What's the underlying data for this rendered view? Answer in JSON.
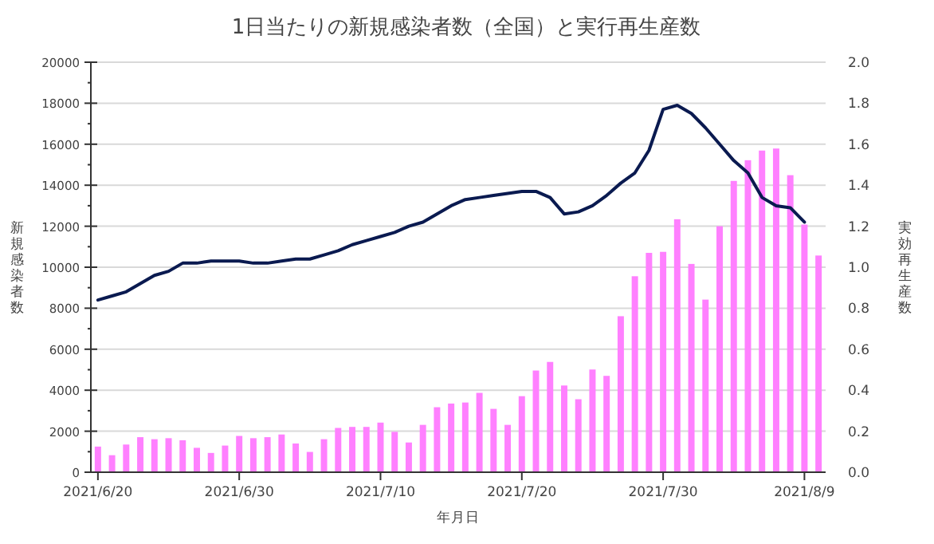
{
  "chart_data": {
    "type": "bar",
    "title": "1日当たりの新規感染者数（全国）と実行再生産数",
    "xlabel": "年月日",
    "ylabel": "新規感染者数",
    "y2label": "実効再生産数",
    "x": [
      "2021-06-20",
      "2021-06-21",
      "2021-06-22",
      "2021-06-23",
      "2021-06-24",
      "2021-06-25",
      "2021-06-26",
      "2021-06-27",
      "2021-06-28",
      "2021-06-29",
      "2021-06-30",
      "2021-07-01",
      "2021-07-02",
      "2021-07-03",
      "2021-07-04",
      "2021-07-05",
      "2021-07-06",
      "2021-07-07",
      "2021-07-08",
      "2021-07-09",
      "2021-07-10",
      "2021-07-11",
      "2021-07-12",
      "2021-07-13",
      "2021-07-14",
      "2021-07-15",
      "2021-07-16",
      "2021-07-17",
      "2021-07-18",
      "2021-07-19",
      "2021-07-20",
      "2021-07-21",
      "2021-07-22",
      "2021-07-23",
      "2021-07-24",
      "2021-07-25",
      "2021-07-26",
      "2021-07-27",
      "2021-07-28",
      "2021-07-29",
      "2021-07-30",
      "2021-07-31",
      "2021-08-01",
      "2021-08-02",
      "2021-08-03",
      "2021-08-04",
      "2021-08-05",
      "2021-08-06",
      "2021-08-07",
      "2021-08-08",
      "2021-08-09",
      "2021-08-10"
    ],
    "series": [
      {
        "color": "#ff80ff",
        "values": [
          1250,
          830,
          1350,
          1710,
          1610,
          1660,
          1560,
          1190,
          940,
          1300,
          1770,
          1660,
          1710,
          1840,
          1400,
          990,
          1610,
          2160,
          2210,
          2210,
          2420,
          1970,
          1450,
          2310,
          3170,
          3350,
          3400,
          3870,
          3090,
          2310,
          3710,
          4960,
          5380,
          4230,
          3560,
          5010,
          4700,
          7610,
          9560,
          10700,
          10750,
          12340,
          10160,
          8420,
          12000,
          14210,
          15220,
          15690,
          15790,
          14490,
          12080,
          10570
        ]
      },
      {
        "type": "line",
        "axis": "y2",
        "color": "#0a1a50",
        "values": [
          0.84,
          0.86,
          0.88,
          0.92,
          0.96,
          0.98,
          1.02,
          1.02,
          1.03,
          1.03,
          1.03,
          1.02,
          1.02,
          1.03,
          1.04,
          1.04,
          1.06,
          1.08,
          1.11,
          1.13,
          1.15,
          1.17,
          1.2,
          1.22,
          1.26,
          1.3,
          1.33,
          1.34,
          1.35,
          1.36,
          1.37,
          1.37,
          1.34,
          1.26,
          1.27,
          1.3,
          1.35,
          1.41,
          1.46,
          1.57,
          1.77,
          1.79,
          1.75,
          1.68,
          1.6,
          1.52,
          1.46,
          1.34,
          1.3,
          1.29,
          1.22,
          null
        ]
      }
    ],
    "xlim": [
      "2021-06-19T12:00",
      "2021-08-10T12:00"
    ],
    "xticks": [
      {
        "value": "2021-06-20",
        "label": "2021/6/20"
      },
      {
        "value": "2021-06-30",
        "label": "2021/6/30"
      },
      {
        "value": "2021-07-10",
        "label": "2021/7/10"
      },
      {
        "value": "2021-07-20",
        "label": "2021/7/20"
      },
      {
        "value": "2021-07-30",
        "label": "2021/7/30"
      },
      {
        "value": "2021-08-09",
        "label": "2021/8/9"
      }
    ],
    "ylim": [
      0,
      20000
    ],
    "yticks": [
      0,
      2000,
      4000,
      6000,
      8000,
      10000,
      12000,
      14000,
      16000,
      18000,
      20000
    ],
    "y2lim": [
      0,
      2
    ],
    "y2ticks": [
      {
        "value": 0,
        "label": "0.0"
      },
      {
        "value": 0.2,
        "label": "0.2"
      },
      {
        "value": 0.4,
        "label": "0.4"
      },
      {
        "value": 0.6,
        "label": "0.6"
      },
      {
        "value": 0.8,
        "label": "0.8"
      },
      {
        "value": 1,
        "label": "1.0"
      },
      {
        "value": 1.2,
        "label": "1.2"
      },
      {
        "value": 1.4,
        "label": "1.4"
      },
      {
        "value": 1.6,
        "label": "1.6"
      },
      {
        "value": 1.8,
        "label": "1.8"
      },
      {
        "value": 2,
        "label": "2.0"
      }
    ],
    "grid": "y"
  }
}
